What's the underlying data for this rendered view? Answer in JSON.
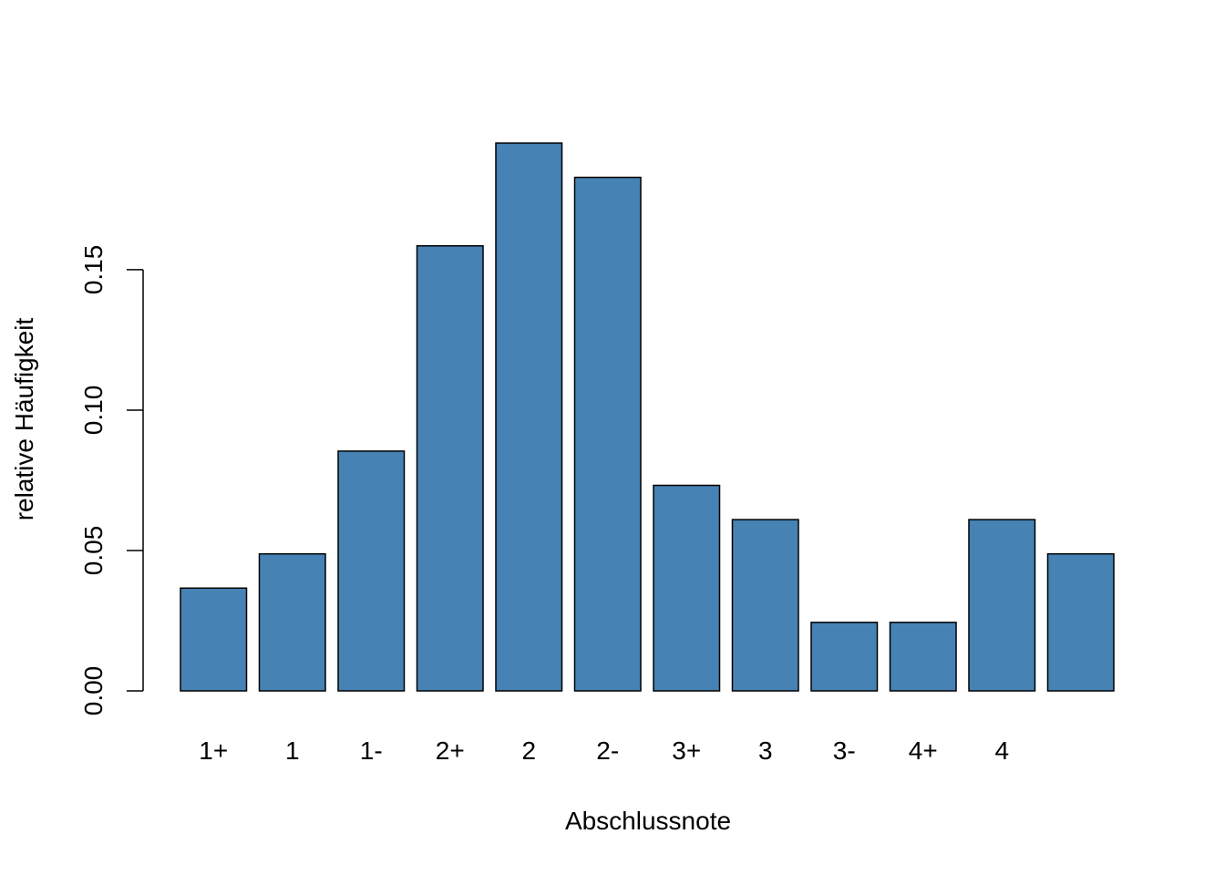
{
  "chart_data": {
    "type": "bar",
    "xlabel": "Abschlussnote",
    "ylabel": "relative Häufigkeit",
    "categories": [
      "1+",
      "1",
      "1-",
      "2+",
      "2",
      "2-",
      "3+",
      "3",
      "3-",
      "4+",
      "4",
      ""
    ],
    "values": [
      0.0366,
      0.0488,
      0.0854,
      0.1585,
      0.1951,
      0.1829,
      0.0732,
      0.061,
      0.0244,
      0.0244,
      0.061,
      0.0488
    ],
    "yticks": [
      0.0,
      0.05,
      0.1,
      0.15
    ],
    "ytick_labels": [
      "0.00",
      "0.05",
      "0.10",
      "0.15"
    ],
    "ylim": [
      0,
      0.1951
    ],
    "bar_color": "#4682B4",
    "grid": false,
    "legend": "none"
  }
}
